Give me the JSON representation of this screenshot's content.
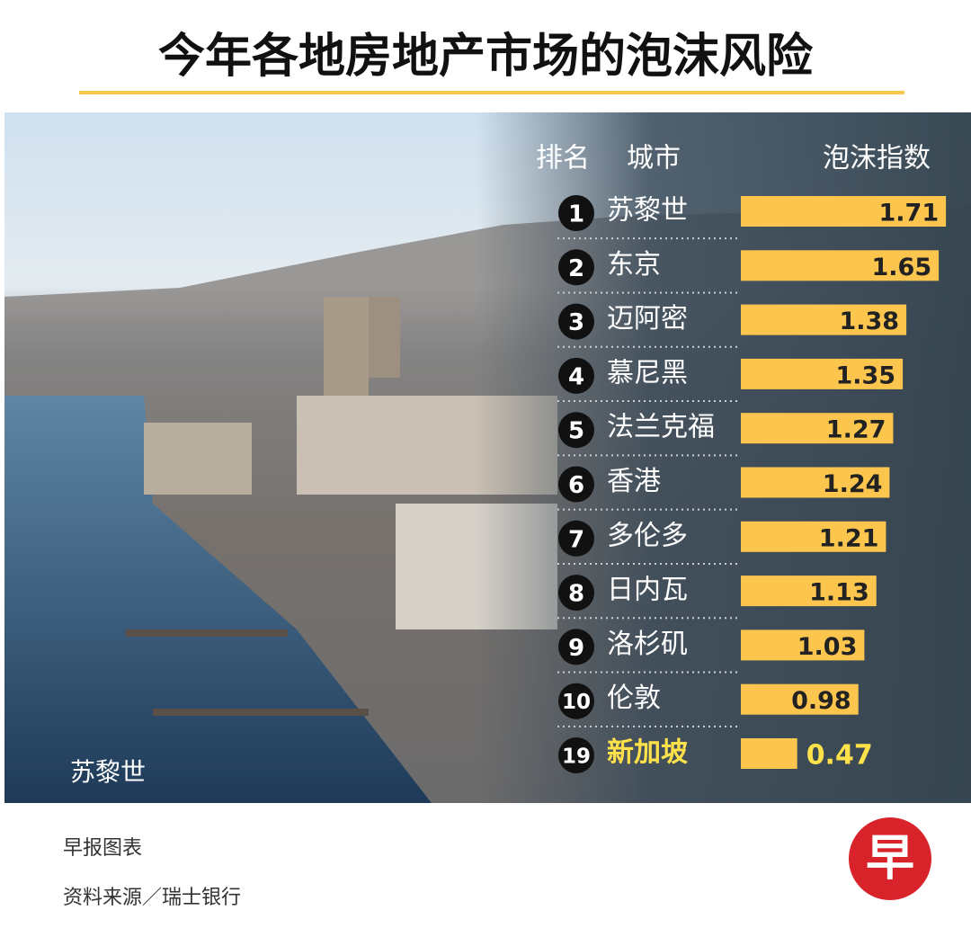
{
  "title": "今年各地房地产市场的泡沫风险",
  "photo_caption": "苏黎世",
  "chart_data": {
    "type": "bar",
    "headers": [
      "排名",
      "城市",
      "泡沫指数"
    ],
    "ranks": [
      "1",
      "2",
      "3",
      "4",
      "5",
      "6",
      "7",
      "8",
      "9",
      "10",
      "19"
    ],
    "categories": [
      "苏黎世",
      "东京",
      "迈阿密",
      "慕尼黑",
      "法兰克福",
      "香港",
      "多伦多",
      "日内瓦",
      "洛杉矶",
      "伦敦",
      "新加坡"
    ],
    "values": [
      1.71,
      1.65,
      1.38,
      1.35,
      1.27,
      1.24,
      1.21,
      1.13,
      1.03,
      0.98,
      0.47
    ],
    "color": "#fcc54e"
  },
  "footer": {
    "credit": "早报图表",
    "source": "资料来源／瑞士银行",
    "logo": "早"
  }
}
